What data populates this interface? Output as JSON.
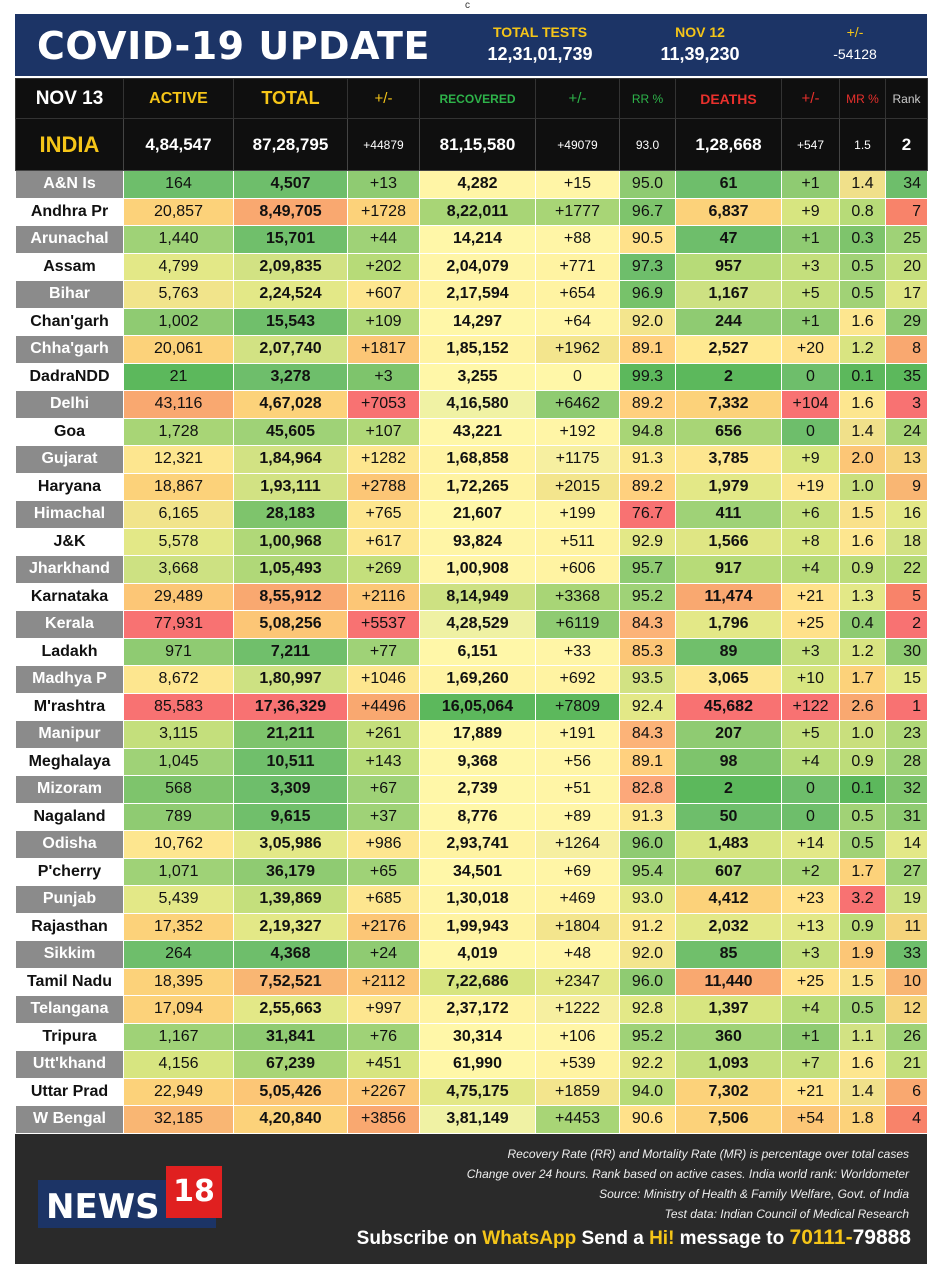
{
  "top_mark": "c",
  "header": {
    "title": "COVID-19 UPDATE",
    "total_tests_label": "TOTAL TESTS",
    "total_tests_value": "12,31,01,739",
    "nov12_label": "NOV 12",
    "nov12_value": "11,39,230",
    "pm_label": "+/-",
    "pm_value": "-54128"
  },
  "columns": [
    "NOV 13",
    "ACTIVE",
    "TOTAL",
    "+/-",
    "RECOVERED",
    "+/-",
    "RR %",
    "DEATHS",
    "+/-",
    "MR %",
    "Rank"
  ],
  "column_colors": [
    "#ffffff",
    "#f5c518",
    "#f5c518",
    "#f5c518",
    "#2eb34a",
    "#2eb34a",
    "#2eb34a",
    "#e8302c",
    "#e8302c",
    "#e8302c",
    "#cccccc"
  ],
  "india": [
    "INDIA",
    "4,84,547",
    "87,28,795",
    "+44879",
    "81,15,580",
    "+49079",
    "93.0",
    "1,28,668",
    "+547",
    "1.5",
    "2"
  ],
  "rows": [
    {
      "v": [
        "A&N Is",
        "164",
        "4,507",
        "+13",
        "4,282",
        "+15",
        "95.0",
        "61",
        "+1",
        "1.4",
        "34"
      ],
      "c": [
        "",
        "#6ebe6b",
        "#6ebe6b",
        "#8fcb72",
        "#fff5a6",
        "#fff5a6",
        "#8fcb72",
        "#6ebe6b",
        "#8fcb72",
        "#f0e08a",
        "#6ebe6b"
      ]
    },
    {
      "v": [
        "Andhra Pr",
        "20,857",
        "8,49,705",
        "+1728",
        "8,22,011",
        "+1777",
        "96.7",
        "6,837",
        "+9",
        "0.8",
        "7"
      ],
      "c": [
        "",
        "#fcd27a",
        "#f9a870",
        "#fcd27a",
        "#a8d576",
        "#a8d576",
        "#7ec46c",
        "#fcd27a",
        "#d7e580",
        "#b7db78",
        "#f8836a"
      ]
    },
    {
      "v": [
        "Arunachal",
        "1,440",
        "15,701",
        "+44",
        "14,214",
        "+88",
        "90.5",
        "47",
        "+1",
        "0.3",
        "25"
      ],
      "c": [
        "",
        "#9fd277",
        "#70bf6b",
        "#9fd277",
        "#fff7a8",
        "#fff5a6",
        "#ffe18a",
        "#6ebe6b",
        "#8fcb72",
        "#7ec46c",
        "#9fd277"
      ]
    },
    {
      "v": [
        "Assam",
        "4,799",
        "2,09,835",
        "+202",
        "2,04,079",
        "+771",
        "97.3",
        "957",
        "+3",
        "0.5",
        "20"
      ],
      "c": [
        "",
        "#e3e887",
        "#d2e283",
        "#b7db78",
        "#fff5a6",
        "#fff3a2",
        "#6ebe6b",
        "#b7db78",
        "#c4df7c",
        "#a1d276",
        "#c4df7c"
      ]
    },
    {
      "v": [
        "Bihar",
        "5,763",
        "2,24,524",
        "+607",
        "2,17,594",
        "+654",
        "96.9",
        "1,167",
        "+5",
        "0.5",
        "17"
      ],
      "c": [
        "",
        "#f1e48b",
        "#e3e887",
        "#fde68f",
        "#fff3a2",
        "#fff3a2",
        "#77c26a",
        "#cde182",
        "#c4df7c",
        "#a1d276",
        "#dfe684"
      ]
    },
    {
      "v": [
        "Chan'garh",
        "1,002",
        "15,543",
        "+109",
        "14,297",
        "+64",
        "92.0",
        "244",
        "+1",
        "1.6",
        "29"
      ],
      "c": [
        "",
        "#8fcb72",
        "#70bf6b",
        "#b0d878",
        "#fff7a8",
        "#fff5a6",
        "#f3e58d",
        "#8fcb72",
        "#8fcb72",
        "#fde68f",
        "#8fcb72"
      ]
    },
    {
      "v": [
        "Chha'garh",
        "20,061",
        "2,07,740",
        "+1817",
        "1,85,152",
        "+1962",
        "89.1",
        "2,527",
        "+20",
        "1.2",
        "8"
      ],
      "c": [
        "",
        "#fcd27a",
        "#d2e283",
        "#fcc676",
        "#fff3a2",
        "#f3e58d",
        "#ffd07e",
        "#ffe991",
        "#ffe18a",
        "#d9e481",
        "#f9a870"
      ]
    },
    {
      "v": [
        "DadraNDD",
        "21",
        "3,278",
        "+3",
        "3,255",
        "0",
        "99.3",
        "2",
        "0",
        "0.1",
        "35"
      ],
      "c": [
        "",
        "#5cb85c",
        "#6ebe6b",
        "#7ec46c",
        "#fff7a8",
        "#fff7a8",
        "#5cb85c",
        "#5cb85c",
        "#6ebe6b",
        "#5cb85c",
        "#5cb85c"
      ]
    },
    {
      "v": [
        "Delhi",
        "43,116",
        "4,67,028",
        "+7053",
        "4,16,580",
        "+6462",
        "89.2",
        "7,332",
        "+104",
        "1.6",
        "3"
      ],
      "c": [
        "",
        "#f9a870",
        "#fcd27a",
        "#f87272",
        "#f0f2a4",
        "#8fcb72",
        "#ffd07e",
        "#fcd27a",
        "#f87272",
        "#fde68f",
        "#f87272"
      ]
    },
    {
      "v": [
        "Goa",
        "1,728",
        "45,605",
        "+107",
        "43,221",
        "+192",
        "94.8",
        "656",
        "0",
        "1.4",
        "24"
      ],
      "c": [
        "",
        "#a8d576",
        "#9fd277",
        "#b0d878",
        "#fff7a8",
        "#fff5a6",
        "#a8d576",
        "#a8d576",
        "#6ebe6b",
        "#f0e08a",
        "#a8d576"
      ]
    },
    {
      "v": [
        "Gujarat",
        "12,321",
        "1,84,964",
        "+1282",
        "1,68,858",
        "+1175",
        "91.3",
        "3,785",
        "+9",
        "2.0",
        "13"
      ],
      "c": [
        "",
        "#fde68f",
        "#d2e283",
        "#fde68f",
        "#fff3a2",
        "#f6efa0",
        "#fbe890",
        "#fde68f",
        "#d7e580",
        "#fcc676",
        "#f5d47c"
      ]
    },
    {
      "v": [
        "Haryana",
        "18,867",
        "1,93,111",
        "+2788",
        "1,72,265",
        "+2015",
        "89.2",
        "1,979",
        "+19",
        "1.0",
        "9"
      ],
      "c": [
        "",
        "#fcd27a",
        "#d2e283",
        "#fcc676",
        "#fff3a2",
        "#f3e58d",
        "#ffd07e",
        "#e3e887",
        "#fde68f",
        "#c9df7d",
        "#f9b673"
      ]
    },
    {
      "v": [
        "Himachal",
        "6,165",
        "28,183",
        "+765",
        "21,607",
        "+199",
        "76.7",
        "411",
        "+6",
        "1.5",
        "16"
      ],
      "c": [
        "",
        "#f1e48b",
        "#7ec46c",
        "#fde68f",
        "#fff7a8",
        "#fff5a6",
        "#f87272",
        "#9fd277",
        "#c4df7c",
        "#f9e18a",
        "#e3e887"
      ]
    },
    {
      "v": [
        "J&K",
        "5,578",
        "1,00,968",
        "+617",
        "93,824",
        "+511",
        "92.9",
        "1,566",
        "+8",
        "1.6",
        "18"
      ],
      "c": [
        "",
        "#e3e887",
        "#b0d878",
        "#fde68f",
        "#fff5a6",
        "#fff3a2",
        "#e3e887",
        "#dfe684",
        "#d7e580",
        "#fde68f",
        "#d2e283"
      ]
    },
    {
      "v": [
        "Jharkhand",
        "3,668",
        "1,05,493",
        "+269",
        "1,00,908",
        "+606",
        "95.7",
        "917",
        "+4",
        "0.9",
        "22"
      ],
      "c": [
        "",
        "#cde182",
        "#b0d878",
        "#c4df7c",
        "#fff5a6",
        "#fff3a2",
        "#8fcb72",
        "#b7db78",
        "#b7db78",
        "#bcdc79",
        "#b7db78"
      ]
    },
    {
      "v": [
        "Karnataka",
        "29,489",
        "8,55,912",
        "+2116",
        "8,14,949",
        "+3368",
        "95.2",
        "11,474",
        "+21",
        "1.3",
        "5"
      ],
      "c": [
        "",
        "#fcc676",
        "#f9a870",
        "#fcc676",
        "#cde182",
        "#a8d576",
        "#9fd277",
        "#f9a870",
        "#ffe18a",
        "#e3e887",
        "#f8836a"
      ]
    },
    {
      "v": [
        "Kerala",
        "77,931",
        "5,08,256",
        "+5537",
        "4,28,529",
        "+6119",
        "84.3",
        "1,796",
        "+25",
        "0.4",
        "2"
      ],
      "c": [
        "",
        "#f87272",
        "#fcc676",
        "#f87272",
        "#eff1a3",
        "#8fcb72",
        "#fcb378",
        "#e3e887",
        "#ffe18a",
        "#8fcb72",
        "#f87272"
      ]
    },
    {
      "v": [
        "Ladakh",
        "971",
        "7,211",
        "+77",
        "6,151",
        "+33",
        "85.3",
        "89",
        "+3",
        "1.2",
        "30"
      ],
      "c": [
        "",
        "#8fcb72",
        "#70bf6b",
        "#9fd277",
        "#fff7a8",
        "#fff5a6",
        "#fcc676",
        "#70bf6b",
        "#c4df7c",
        "#d9e481",
        "#8fcb72"
      ]
    },
    {
      "v": [
        "Madhya P",
        "8,672",
        "1,80,997",
        "+1046",
        "1,69,260",
        "+692",
        "93.5",
        "3,065",
        "+10",
        "1.7",
        "15"
      ],
      "c": [
        "",
        "#fde68f",
        "#cde182",
        "#fde68f",
        "#fff3a2",
        "#fff3a2",
        "#d2e283",
        "#fde68f",
        "#d7e580",
        "#fcd27a",
        "#e3e887"
      ]
    },
    {
      "v": [
        "M'rashtra",
        "85,583",
        "17,36,329",
        "+4496",
        "16,05,064",
        "+7809",
        "92.4",
        "45,682",
        "+122",
        "2.6",
        "1"
      ],
      "c": [
        "",
        "#f87272",
        "#f87272",
        "#f9a870",
        "#5cb85c",
        "#5cb85c",
        "#e3e887",
        "#f87272",
        "#f87272",
        "#f9a870",
        "#f87272"
      ]
    },
    {
      "v": [
        "Manipur",
        "3,115",
        "21,211",
        "+261",
        "17,889",
        "+191",
        "84.3",
        "207",
        "+5",
        "1.0",
        "23"
      ],
      "c": [
        "",
        "#c4df7c",
        "#7ec46c",
        "#c4df7c",
        "#fff7a8",
        "#fff5a6",
        "#fcb378",
        "#8fcb72",
        "#c4df7c",
        "#c9df7d",
        "#b0d878"
      ]
    },
    {
      "v": [
        "Meghalaya",
        "1,045",
        "10,511",
        "+143",
        "9,368",
        "+56",
        "89.1",
        "98",
        "+4",
        "0.9",
        "28"
      ],
      "c": [
        "",
        "#9fd277",
        "#70bf6b",
        "#b7db78",
        "#fff7a8",
        "#fff5a6",
        "#ffd07e",
        "#7ec46c",
        "#b7db78",
        "#bcdc79",
        "#9fd277"
      ]
    },
    {
      "v": [
        "Mizoram",
        "568",
        "3,309",
        "+67",
        "2,739",
        "+51",
        "82.8",
        "2",
        "0",
        "0.1",
        "32"
      ],
      "c": [
        "",
        "#7ec46c",
        "#6ebe6b",
        "#9fd277",
        "#fff7a8",
        "#fff5a6",
        "#fca87a",
        "#5cb85c",
        "#6ebe6b",
        "#5cb85c",
        "#7ec46c"
      ]
    },
    {
      "v": [
        "Nagaland",
        "789",
        "9,615",
        "+37",
        "8,776",
        "+89",
        "91.3",
        "50",
        "0",
        "0.5",
        "31"
      ],
      "c": [
        "",
        "#8fcb72",
        "#70bf6b",
        "#9fd277",
        "#fff7a8",
        "#fff5a6",
        "#fbe890",
        "#6ebe6b",
        "#6ebe6b",
        "#a1d276",
        "#8fcb72"
      ]
    },
    {
      "v": [
        "Odisha",
        "10,762",
        "3,05,986",
        "+986",
        "2,93,741",
        "+1264",
        "96.0",
        "1,483",
        "+14",
        "0.5",
        "14"
      ],
      "c": [
        "",
        "#fde68f",
        "#e3e887",
        "#fde68f",
        "#fff3a2",
        "#f6efa0",
        "#8fcb72",
        "#d7e580",
        "#e3e887",
        "#a1d276",
        "#e3e887"
      ]
    },
    {
      "v": [
        "P'cherry",
        "1,071",
        "36,179",
        "+65",
        "34,501",
        "+69",
        "95.4",
        "607",
        "+2",
        "1.7",
        "27"
      ],
      "c": [
        "",
        "#9fd277",
        "#8fcb72",
        "#9fd277",
        "#fff7a8",
        "#fff5a6",
        "#9fd277",
        "#a8d576",
        "#a8d576",
        "#fcd27a",
        "#9fd277"
      ]
    },
    {
      "v": [
        "Punjab",
        "5,439",
        "1,39,869",
        "+685",
        "1,30,018",
        "+469",
        "93.0",
        "4,412",
        "+23",
        "3.2",
        "19"
      ],
      "c": [
        "",
        "#e3e887",
        "#c4df7c",
        "#fde68f",
        "#fff5a6",
        "#fff3a2",
        "#e3e887",
        "#fcd27a",
        "#ffe18a",
        "#f87272",
        "#cde182"
      ]
    },
    {
      "v": [
        "Rajasthan",
        "17,352",
        "2,19,327",
        "+2176",
        "1,99,943",
        "+1804",
        "91.2",
        "2,032",
        "+13",
        "0.9",
        "11"
      ],
      "c": [
        "",
        "#fcd27a",
        "#e3e887",
        "#fcc676",
        "#fff3a2",
        "#f3e58d",
        "#fbe890",
        "#e3e887",
        "#e3e887",
        "#bcdc79",
        "#f5d47c"
      ]
    },
    {
      "v": [
        "Sikkim",
        "264",
        "4,368",
        "+24",
        "4,019",
        "+48",
        "92.0",
        "85",
        "+3",
        "1.9",
        "33"
      ],
      "c": [
        "",
        "#6ebe6b",
        "#6ebe6b",
        "#8fcb72",
        "#fff7a8",
        "#fff5a6",
        "#f3e58d",
        "#70bf6b",
        "#c4df7c",
        "#fcc676",
        "#6ebe6b"
      ]
    },
    {
      "v": [
        "Tamil Nadu",
        "18,395",
        "7,52,521",
        "+2112",
        "7,22,686",
        "+2347",
        "96.0",
        "11,440",
        "+25",
        "1.5",
        "10"
      ],
      "c": [
        "",
        "#fcd27a",
        "#f9b673",
        "#fcc676",
        "#d7e580",
        "#e3e887",
        "#8fcb72",
        "#f9a870",
        "#ffe18a",
        "#f9e18a",
        "#f9b673"
      ]
    },
    {
      "v": [
        "Telangana",
        "17,094",
        "2,55,663",
        "+997",
        "2,37,172",
        "+1222",
        "92.8",
        "1,397",
        "+4",
        "0.5",
        "12"
      ],
      "c": [
        "",
        "#fcd27a",
        "#e3e887",
        "#fde68f",
        "#fff3a2",
        "#f6efa0",
        "#e3e887",
        "#d7e580",
        "#b7db78",
        "#a1d276",
        "#f5d47c"
      ]
    },
    {
      "v": [
        "Tripura",
        "1,167",
        "31,841",
        "+76",
        "30,314",
        "+106",
        "95.2",
        "360",
        "+1",
        "1.1",
        "26"
      ],
      "c": [
        "",
        "#9fd277",
        "#8fcb72",
        "#9fd277",
        "#fff7a8",
        "#fff5a6",
        "#9fd277",
        "#9fd277",
        "#8fcb72",
        "#d2e283",
        "#9fd277"
      ]
    },
    {
      "v": [
        "Utt'khand",
        "4,156",
        "67,239",
        "+451",
        "61,990",
        "+539",
        "92.2",
        "1,093",
        "+7",
        "1.6",
        "21"
      ],
      "c": [
        "",
        "#d7e580",
        "#a8d576",
        "#d7e580",
        "#fff7a8",
        "#fff3a2",
        "#e3e887",
        "#c4df7c",
        "#c4df7c",
        "#fde68f",
        "#c4df7c"
      ]
    },
    {
      "v": [
        "Uttar Prad",
        "22,949",
        "5,05,426",
        "+2267",
        "4,75,175",
        "+1859",
        "94.0",
        "7,302",
        "+21",
        "1.4",
        "6"
      ],
      "c": [
        "",
        "#fcd27a",
        "#fcc676",
        "#fcc676",
        "#e3e887",
        "#f3e58d",
        "#b7db78",
        "#fcd27a",
        "#ffe18a",
        "#f0e08a",
        "#f9a870"
      ]
    },
    {
      "v": [
        "W Bengal",
        "32,185",
        "4,20,840",
        "+3856",
        "3,81,149",
        "+4453",
        "90.6",
        "7,506",
        "+54",
        "1.8",
        "4"
      ],
      "c": [
        "",
        "#f9b673",
        "#fcd27a",
        "#f9a870",
        "#f0f2a4",
        "#a8d576",
        "#ffe18a",
        "#fcd27a",
        "#fcc676",
        "#fcd27a",
        "#f8836a"
      ]
    }
  ],
  "footer": {
    "note1": "Recovery Rate (RR) and Mortality Rate (MR) is percentage over total cases",
    "note2": "Change over 24 hours. Rank based on active cases. India world rank: Worldometer",
    "note3": "Source: Ministry of Health & Family Welfare, Govt. of India",
    "note4": "Test data: Indian Council of Medical Research",
    "logo_word": "NEWS",
    "logo_num": "18",
    "sub_a": "Subscribe on ",
    "sub_b": "WhatsApp",
    "sub_c": " Send a ",
    "sub_d": "Hi!",
    "sub_e": " message to ",
    "sub_f": "70111-",
    "sub_g": "79888"
  }
}
